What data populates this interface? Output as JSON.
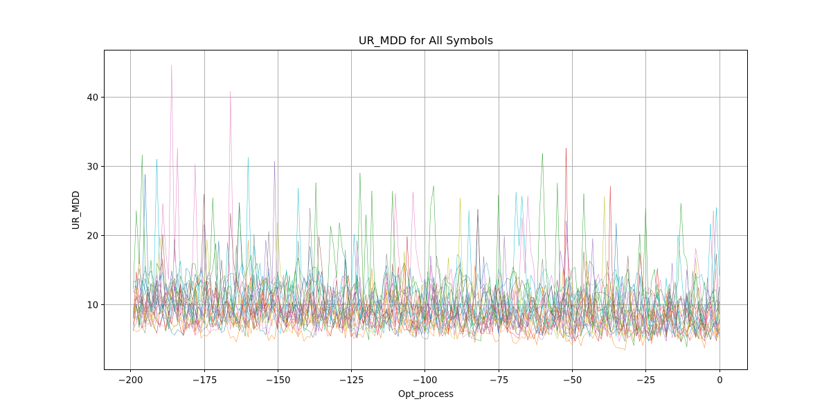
{
  "chart_data": {
    "type": "line",
    "title": "UR_MDD for All Symbols",
    "xlabel": "Opt_process",
    "ylabel": "UR_MDD",
    "xlim": [
      -209,
      9.5
    ],
    "ylim": [
      0.6,
      46.8
    ],
    "xticks": [
      -200,
      -175,
      -150,
      -125,
      -100,
      -75,
      -50,
      -25,
      0
    ],
    "xtick_labels": [
      "−200",
      "−175",
      "−150",
      "−125",
      "−100",
      "−75",
      "−50",
      "−25",
      "0"
    ],
    "yticks": [
      10,
      20,
      30,
      40
    ],
    "ytick_labels": [
      "10",
      "20",
      "30",
      "40"
    ],
    "grid": true,
    "x_range": [
      -199,
      0
    ],
    "colors": [
      "#1f77b4",
      "#ff7f0e",
      "#2ca02c",
      "#d62728",
      "#9467bd",
      "#8c564b",
      "#e377c2",
      "#7f7f7f",
      "#bcbd22",
      "#17becf"
    ],
    "series_profiles": [
      {
        "color": "#1f77b4",
        "base": 12.0,
        "spread": 4.0
      },
      {
        "color": "#ff7f0e",
        "base": 7.0,
        "spread": 2.0
      },
      {
        "color": "#2ca02c",
        "base": 11.0,
        "spread": 4.5
      },
      {
        "color": "#d62728",
        "base": 8.5,
        "spread": 2.5
      },
      {
        "color": "#9467bd",
        "base": 10.5,
        "spread": 3.5
      },
      {
        "color": "#8c564b",
        "base": 9.0,
        "spread": 2.5
      },
      {
        "color": "#e377c2",
        "base": 11.5,
        "spread": 4.0
      },
      {
        "color": "#7f7f7f",
        "base": 9.5,
        "spread": 3.0
      },
      {
        "color": "#bcbd22",
        "base": 10.0,
        "spread": 3.5
      },
      {
        "color": "#17becf",
        "base": 12.5,
        "spread": 4.0
      },
      {
        "color": "#1f77b4",
        "base": 8.0,
        "spread": 2.0
      },
      {
        "color": "#ff7f0e",
        "base": 9.0,
        "spread": 2.5
      },
      {
        "color": "#2ca02c",
        "base": 13.0,
        "spread": 4.0
      },
      {
        "color": "#d62728",
        "base": 10.0,
        "spread": 3.0
      },
      {
        "color": "#9467bd",
        "base": 9.0,
        "spread": 2.5
      },
      {
        "color": "#8c564b",
        "base": 11.0,
        "spread": 3.5
      },
      {
        "color": "#e377c2",
        "base": 8.5,
        "spread": 2.5
      },
      {
        "color": "#7f7f7f",
        "base": 11.0,
        "spread": 3.0
      },
      {
        "color": "#bcbd22",
        "base": 8.0,
        "spread": 2.0
      },
      {
        "color": "#17becf",
        "base": 10.0,
        "spread": 3.0
      }
    ],
    "spikes": [
      {
        "color": "#e377c2",
        "x": -186,
        "y": 44.6
      },
      {
        "color": "#e377c2",
        "x": -166,
        "y": 40.8
      },
      {
        "color": "#e377c2",
        "x": -184,
        "y": 32.6
      },
      {
        "color": "#17becf",
        "x": -191,
        "y": 31.0
      },
      {
        "color": "#17becf",
        "x": -160,
        "y": 31.3
      },
      {
        "color": "#9467bd",
        "x": -151,
        "y": 30.7
      },
      {
        "color": "#e377c2",
        "x": -178,
        "y": 30.3
      },
      {
        "color": "#d62728",
        "x": -52,
        "y": 32.6
      },
      {
        "color": "#d62728",
        "x": -37,
        "y": 27.1
      },
      {
        "color": "#2ca02c",
        "x": -122,
        "y": 29.0
      },
      {
        "color": "#1f77b4",
        "x": -195,
        "y": 28.8
      },
      {
        "color": "#2ca02c",
        "x": -137,
        "y": 27.6
      },
      {
        "color": "#2ca02c",
        "x": -75,
        "y": 25.8
      },
      {
        "color": "#bcbd22",
        "x": -88,
        "y": 25.4
      },
      {
        "color": "#2ca02c",
        "x": -118,
        "y": 26.4
      },
      {
        "color": "#2ca02c",
        "x": -46,
        "y": 26.0
      },
      {
        "color": "#bcbd22",
        "x": -39,
        "y": 25.6
      },
      {
        "color": "#2ca02c",
        "x": -25,
        "y": 23.9
      }
    ]
  }
}
